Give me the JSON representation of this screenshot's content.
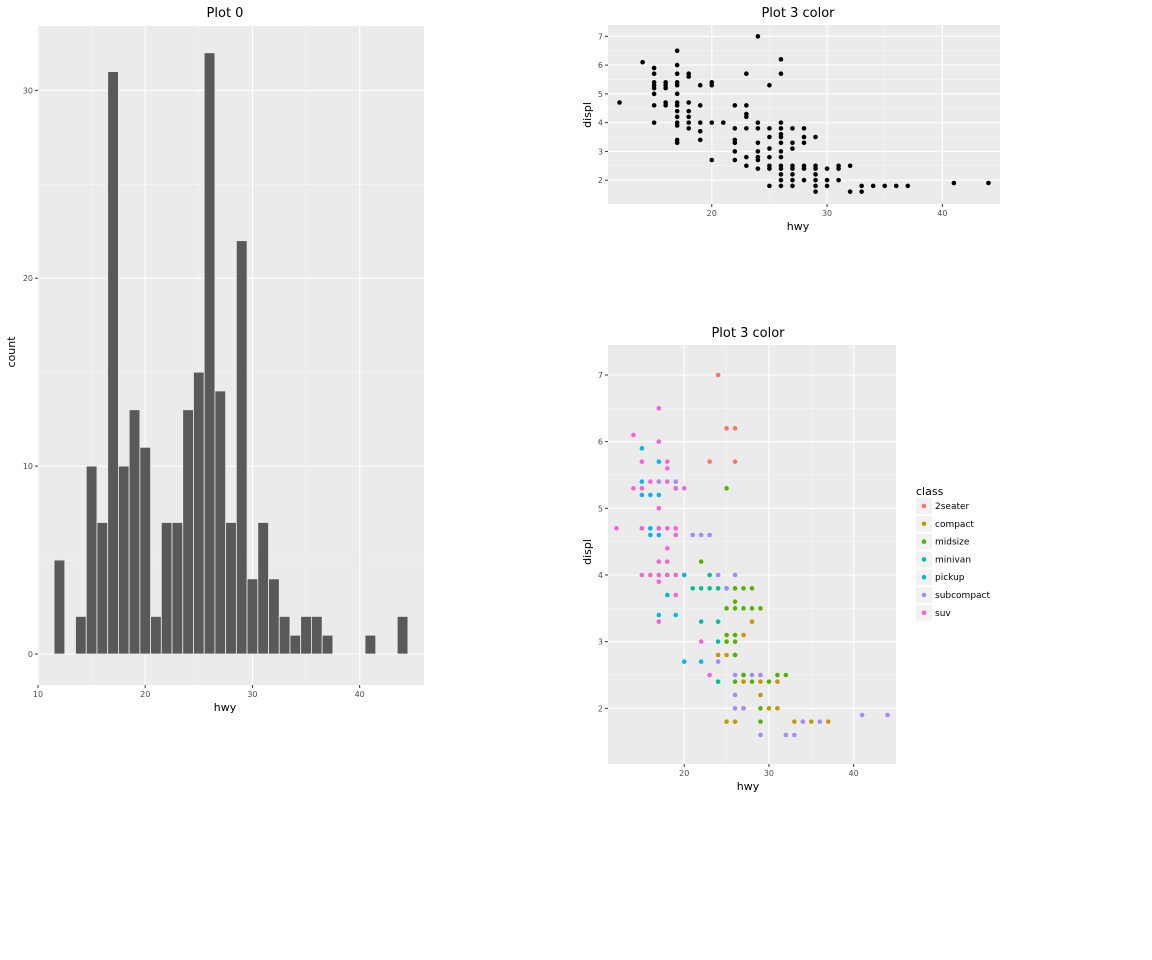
{
  "chart_data": [
    {
      "type": "bar",
      "title": "Plot 0",
      "xlabel": "hwy",
      "ylabel": "count",
      "xlim": [
        10,
        46
      ],
      "ylim": [
        0,
        33
      ],
      "x_ticks": [
        10,
        20,
        30,
        40
      ],
      "y_ticks": [
        0,
        10,
        20,
        30
      ],
      "bar_width": 1,
      "fill": "#595959",
      "x": [
        12,
        14,
        15,
        16,
        17,
        18,
        19,
        20,
        21,
        22,
        23,
        24,
        25,
        26,
        27,
        28,
        29,
        30,
        31,
        32,
        33,
        34,
        35,
        36,
        37,
        41,
        44
      ],
      "values": [
        5,
        2,
        10,
        7,
        31,
        10,
        13,
        11,
        2,
        7,
        7,
        13,
        15,
        32,
        14,
        7,
        22,
        4,
        7,
        4,
        2,
        1,
        2,
        2,
        1,
        1,
        2
      ]
    },
    {
      "type": "scatter",
      "title": "Plot 3 color",
      "xlabel": "hwy",
      "ylabel": "displ",
      "xlim": [
        11,
        45
      ],
      "ylim": [
        1.45,
        7.15
      ],
      "x_ticks": [
        20,
        30,
        40
      ],
      "y_ticks": [
        2,
        3,
        4,
        5,
        6,
        7
      ],
      "point_color": "#000000",
      "points": [
        [
          12,
          4.7
        ],
        [
          14,
          6.1
        ],
        [
          15,
          5.4
        ],
        [
          15,
          5.2
        ],
        [
          15,
          5.0
        ],
        [
          15,
          4.6
        ],
        [
          15,
          4.0
        ],
        [
          15,
          5.9
        ],
        [
          15,
          5.7
        ],
        [
          15,
          5.3
        ],
        [
          16,
          4.7
        ],
        [
          16,
          4.6
        ],
        [
          16,
          5.2
        ],
        [
          16,
          5.3
        ],
        [
          16,
          5.4
        ],
        [
          17,
          4.7
        ],
        [
          17,
          5.4
        ],
        [
          17,
          5.3
        ],
        [
          17,
          5.7
        ],
        [
          17,
          6.5
        ],
        [
          17,
          4.6
        ],
        [
          17,
          4.0
        ],
        [
          17,
          4.2
        ],
        [
          17,
          3.3
        ],
        [
          17,
          3.4
        ],
        [
          17,
          3.9
        ],
        [
          17,
          5.0
        ],
        [
          17,
          6.0
        ],
        [
          17,
          4.4
        ],
        [
          18,
          4.2
        ],
        [
          18,
          5.7
        ],
        [
          18,
          5.6
        ],
        [
          18,
          4.0
        ],
        [
          18,
          4.4
        ],
        [
          18,
          3.8
        ],
        [
          18,
          4.7
        ],
        [
          19,
          3.7
        ],
        [
          19,
          4.0
        ],
        [
          19,
          3.4
        ],
        [
          19,
          5.3
        ],
        [
          19,
          4.6
        ],
        [
          20,
          5.4
        ],
        [
          20,
          5.3
        ],
        [
          20,
          2.7
        ],
        [
          20,
          4.0
        ],
        [
          21,
          4.0
        ],
        [
          22,
          4.6
        ],
        [
          22,
          3.8
        ],
        [
          22,
          3.4
        ],
        [
          23,
          4.6
        ],
        [
          23,
          3.8
        ],
        [
          22,
          3.3
        ],
        [
          22,
          3.0
        ],
        [
          22,
          2.7
        ],
        [
          23,
          2.5
        ],
        [
          23,
          2.8
        ],
        [
          23,
          4.3
        ],
        [
          23,
          4.2
        ],
        [
          23,
          5.7
        ],
        [
          24,
          7.0
        ],
        [
          24,
          4.0
        ],
        [
          24,
          2.8
        ],
        [
          24,
          3.8
        ],
        [
          24,
          3.3
        ],
        [
          24,
          3.0
        ],
        [
          24,
          2.4
        ],
        [
          24,
          2.7
        ],
        [
          25,
          3.8
        ],
        [
          25,
          2.8
        ],
        [
          25,
          3.1
        ],
        [
          25,
          2.5
        ],
        [
          25,
          2.4
        ],
        [
          25,
          1.8
        ],
        [
          25,
          5.3
        ],
        [
          25,
          3.5
        ],
        [
          26,
          2.2
        ],
        [
          26,
          2.0
        ],
        [
          26,
          1.8
        ],
        [
          26,
          2.5
        ],
        [
          26,
          2.4
        ],
        [
          26,
          2.8
        ],
        [
          26,
          3.0
        ],
        [
          26,
          3.3
        ],
        [
          26,
          3.5
        ],
        [
          26,
          3.6
        ],
        [
          26,
          3.8
        ],
        [
          26,
          6.2
        ],
        [
          26,
          5.7
        ],
        [
          26,
          4.0
        ],
        [
          27,
          2.0
        ],
        [
          27,
          2.4
        ],
        [
          27,
          2.5
        ],
        [
          27,
          3.1
        ],
        [
          27,
          3.3
        ],
        [
          27,
          3.8
        ],
        [
          27,
          2.2
        ],
        [
          27,
          1.8
        ],
        [
          28,
          2.0
        ],
        [
          28,
          2.5
        ],
        [
          28,
          2.4
        ],
        [
          28,
          3.3
        ],
        [
          28,
          3.5
        ],
        [
          28,
          3.8
        ],
        [
          29,
          2.0
        ],
        [
          29,
          1.8
        ],
        [
          29,
          2.5
        ],
        [
          29,
          2.4
        ],
        [
          29,
          2.2
        ],
        [
          29,
          1.6
        ],
        [
          29,
          3.5
        ],
        [
          30,
          2.0
        ],
        [
          30,
          2.4
        ],
        [
          30,
          1.8
        ],
        [
          31,
          2.4
        ],
        [
          31,
          2.5
        ],
        [
          31,
          2.0
        ],
        [
          32,
          1.6
        ],
        [
          32,
          2.5
        ],
        [
          33,
          1.8
        ],
        [
          33,
          1.6
        ],
        [
          34,
          1.8
        ],
        [
          35,
          1.8
        ],
        [
          36,
          1.8
        ],
        [
          37,
          1.8
        ],
        [
          41,
          1.9
        ],
        [
          44,
          1.9
        ]
      ]
    },
    {
      "type": "scatter",
      "title": "Plot 3 color",
      "xlabel": "hwy",
      "ylabel": "displ",
      "xlim": [
        11,
        45
      ],
      "ylim": [
        1.45,
        7.15
      ],
      "x_ticks": [
        20,
        30,
        40
      ],
      "y_ticks": [
        2,
        3,
        4,
        5,
        6,
        7
      ],
      "legend": {
        "title": "class",
        "position": "right",
        "entries": [
          {
            "name": "2seater",
            "color": "#F8766D"
          },
          {
            "name": "compact",
            "color": "#C49A00"
          },
          {
            "name": "midsize",
            "color": "#53B400"
          },
          {
            "name": "minivan",
            "color": "#00C094"
          },
          {
            "name": "pickup",
            "color": "#00B6EB"
          },
          {
            "name": "subcompact",
            "color": "#A58AFF"
          },
          {
            "name": "suv",
            "color": "#FB61D7"
          }
        ]
      },
      "points": [
        {
          "x": 23,
          "y": 5.7,
          "c": "2seater"
        },
        {
          "x": 24,
          "y": 7.0,
          "c": "2seater"
        },
        {
          "x": 25,
          "y": 6.2,
          "c": "2seater"
        },
        {
          "x": 26,
          "y": 6.2,
          "c": "2seater"
        },
        {
          "x": 26,
          "y": 5.7,
          "c": "2seater"
        },
        {
          "x": 25,
          "y": 1.8,
          "c": "compact"
        },
        {
          "x": 26,
          "y": 1.8,
          "c": "compact"
        },
        {
          "x": 24,
          "y": 2.8,
          "c": "compact"
        },
        {
          "x": 25,
          "y": 2.8,
          "c": "compact"
        },
        {
          "x": 27,
          "y": 3.1,
          "c": "compact"
        },
        {
          "x": 27,
          "y": 2.5,
          "c": "compact"
        },
        {
          "x": 28,
          "y": 3.3,
          "c": "compact"
        },
        {
          "x": 29,
          "y": 2.4,
          "c": "compact"
        },
        {
          "x": 29,
          "y": 2.2,
          "c": "compact"
        },
        {
          "x": 30,
          "y": 2.0,
          "c": "compact"
        },
        {
          "x": 31,
          "y": 2.0,
          "c": "compact"
        },
        {
          "x": 31,
          "y": 2.4,
          "c": "compact"
        },
        {
          "x": 33,
          "y": 1.8,
          "c": "compact"
        },
        {
          "x": 35,
          "y": 1.8,
          "c": "compact"
        },
        {
          "x": 37,
          "y": 1.8,
          "c": "compact"
        },
        {
          "x": 27,
          "y": 2.0,
          "c": "compact"
        },
        {
          "x": 27,
          "y": 2.4,
          "c": "compact"
        },
        {
          "x": 26,
          "y": 2.8,
          "c": "compact"
        },
        {
          "x": 25,
          "y": 5.3,
          "c": "midsize"
        },
        {
          "x": 26,
          "y": 3.8,
          "c": "midsize"
        },
        {
          "x": 26,
          "y": 3.6,
          "c": "midsize"
        },
        {
          "x": 26,
          "y": 3.1,
          "c": "midsize"
        },
        {
          "x": 25,
          "y": 3.1,
          "c": "midsize"
        },
        {
          "x": 26,
          "y": 3.5,
          "c": "midsize"
        },
        {
          "x": 27,
          "y": 3.8,
          "c": "midsize"
        },
        {
          "x": 27,
          "y": 3.5,
          "c": "midsize"
        },
        {
          "x": 28,
          "y": 3.8,
          "c": "midsize"
        },
        {
          "x": 28,
          "y": 3.5,
          "c": "midsize"
        },
        {
          "x": 29,
          "y": 3.5,
          "c": "midsize"
        },
        {
          "x": 25,
          "y": 3.5,
          "c": "midsize"
        },
        {
          "x": 26,
          "y": 2.4,
          "c": "midsize"
        },
        {
          "x": 27,
          "y": 2.5,
          "c": "midsize"
        },
        {
          "x": 28,
          "y": 2.4,
          "c": "midsize"
        },
        {
          "x": 29,
          "y": 2.0,
          "c": "midsize"
        },
        {
          "x": 29,
          "y": 1.8,
          "c": "midsize"
        },
        {
          "x": 30,
          "y": 2.4,
          "c": "midsize"
        },
        {
          "x": 31,
          "y": 2.5,
          "c": "midsize"
        },
        {
          "x": 32,
          "y": 2.5,
          "c": "midsize"
        },
        {
          "x": 25,
          "y": 3.0,
          "c": "midsize"
        },
        {
          "x": 26,
          "y": 3.0,
          "c": "midsize"
        },
        {
          "x": 26,
          "y": 2.8,
          "c": "midsize"
        },
        {
          "x": 22,
          "y": 4.2,
          "c": "midsize"
        },
        {
          "x": 22,
          "y": 3.8,
          "c": "minivan"
        },
        {
          "x": 21,
          "y": 3.8,
          "c": "minivan"
        },
        {
          "x": 23,
          "y": 4.0,
          "c": "minivan"
        },
        {
          "x": 24,
          "y": 3.8,
          "c": "minivan"
        },
        {
          "x": 24,
          "y": 3.3,
          "c": "minivan"
        },
        {
          "x": 22,
          "y": 3.3,
          "c": "minivan"
        },
        {
          "x": 24,
          "y": 3.0,
          "c": "minivan"
        },
        {
          "x": 24,
          "y": 2.4,
          "c": "minivan"
        },
        {
          "x": 23,
          "y": 3.8,
          "c": "minivan"
        },
        {
          "x": 25,
          "y": 3.8,
          "c": "minivan"
        },
        {
          "x": 15,
          "y": 5.9,
          "c": "pickup"
        },
        {
          "x": 15,
          "y": 5.2,
          "c": "pickup"
        },
        {
          "x": 16,
          "y": 5.2,
          "c": "pickup"
        },
        {
          "x": 17,
          "y": 5.2,
          "c": "pickup"
        },
        {
          "x": 17,
          "y": 5.7,
          "c": "pickup"
        },
        {
          "x": 16,
          "y": 4.7,
          "c": "pickup"
        },
        {
          "x": 17,
          "y": 4.7,
          "c": "pickup"
        },
        {
          "x": 16,
          "y": 4.6,
          "c": "pickup"
        },
        {
          "x": 17,
          "y": 4.6,
          "c": "pickup"
        },
        {
          "x": 18,
          "y": 4.0,
          "c": "pickup"
        },
        {
          "x": 18,
          "y": 3.7,
          "c": "pickup"
        },
        {
          "x": 17,
          "y": 3.4,
          "c": "pickup"
        },
        {
          "x": 19,
          "y": 3.4,
          "c": "pickup"
        },
        {
          "x": 20,
          "y": 4.0,
          "c": "pickup"
        },
        {
          "x": 20,
          "y": 2.7,
          "c": "pickup"
        },
        {
          "x": 22,
          "y": 2.7,
          "c": "pickup"
        },
        {
          "x": 15,
          "y": 4.7,
          "c": "pickup"
        },
        {
          "x": 15,
          "y": 5.4,
          "c": "pickup"
        },
        {
          "x": 19,
          "y": 5.3,
          "c": "pickup"
        },
        {
          "x": 21,
          "y": 4.6,
          "c": "subcompact"
        },
        {
          "x": 22,
          "y": 4.6,
          "c": "subcompact"
        },
        {
          "x": 23,
          "y": 4.6,
          "c": "subcompact"
        },
        {
          "x": 24,
          "y": 4.0,
          "c": "subcompact"
        },
        {
          "x": 26,
          "y": 4.0,
          "c": "subcompact"
        },
        {
          "x": 25,
          "y": 3.8,
          "c": "subcompact"
        },
        {
          "x": 24,
          "y": 2.7,
          "c": "subcompact"
        },
        {
          "x": 26,
          "y": 2.5,
          "c": "subcompact"
        },
        {
          "x": 28,
          "y": 2.5,
          "c": "subcompact"
        },
        {
          "x": 29,
          "y": 2.5,
          "c": "subcompact"
        },
        {
          "x": 26,
          "y": 2.0,
          "c": "subcompact"
        },
        {
          "x": 27,
          "y": 2.0,
          "c": "subcompact"
        },
        {
          "x": 26,
          "y": 2.2,
          "c": "subcompact"
        },
        {
          "x": 29,
          "y": 1.6,
          "c": "subcompact"
        },
        {
          "x": 32,
          "y": 1.6,
          "c": "subcompact"
        },
        {
          "x": 33,
          "y": 1.6,
          "c": "subcompact"
        },
        {
          "x": 34,
          "y": 1.8,
          "c": "subcompact"
        },
        {
          "x": 36,
          "y": 1.8,
          "c": "subcompact"
        },
        {
          "x": 41,
          "y": 1.9,
          "c": "subcompact"
        },
        {
          "x": 44,
          "y": 1.9,
          "c": "subcompact"
        },
        {
          "x": 19,
          "y": 5.4,
          "c": "subcompact"
        },
        {
          "x": 17,
          "y": 5.4,
          "c": "subcompact"
        },
        {
          "x": 12,
          "y": 4.7,
          "c": "suv"
        },
        {
          "x": 14,
          "y": 6.1,
          "c": "suv"
        },
        {
          "x": 14,
          "y": 5.3,
          "c": "suv"
        },
        {
          "x": 15,
          "y": 5.3,
          "c": "suv"
        },
        {
          "x": 15,
          "y": 5.7,
          "c": "suv"
        },
        {
          "x": 15,
          "y": 4.7,
          "c": "suv"
        },
        {
          "x": 15,
          "y": 4.0,
          "c": "suv"
        },
        {
          "x": 16,
          "y": 5.4,
          "c": "suv"
        },
        {
          "x": 16,
          "y": 4.0,
          "c": "suv"
        },
        {
          "x": 17,
          "y": 6.5,
          "c": "suv"
        },
        {
          "x": 17,
          "y": 6.0,
          "c": "suv"
        },
        {
          "x": 17,
          "y": 5.0,
          "c": "suv"
        },
        {
          "x": 17,
          "y": 4.7,
          "c": "suv"
        },
        {
          "x": 17,
          "y": 4.2,
          "c": "suv"
        },
        {
          "x": 17,
          "y": 4.0,
          "c": "suv"
        },
        {
          "x": 17,
          "y": 3.9,
          "c": "suv"
        },
        {
          "x": 17,
          "y": 3.3,
          "c": "suv"
        },
        {
          "x": 18,
          "y": 5.7,
          "c": "suv"
        },
        {
          "x": 18,
          "y": 5.6,
          "c": "suv"
        },
        {
          "x": 18,
          "y": 5.4,
          "c": "suv"
        },
        {
          "x": 18,
          "y": 4.4,
          "c": "suv"
        },
        {
          "x": 18,
          "y": 4.2,
          "c": "suv"
        },
        {
          "x": 18,
          "y": 4.0,
          "c": "suv"
        },
        {
          "x": 19,
          "y": 4.7,
          "c": "suv"
        },
        {
          "x": 19,
          "y": 4.6,
          "c": "suv"
        },
        {
          "x": 19,
          "y": 4.0,
          "c": "suv"
        },
        {
          "x": 19,
          "y": 3.7,
          "c": "suv"
        },
        {
          "x": 20,
          "y": 5.3,
          "c": "suv"
        },
        {
          "x": 22,
          "y": 3.0,
          "c": "suv"
        },
        {
          "x": 23,
          "y": 2.5,
          "c": "suv"
        },
        {
          "x": 18,
          "y": 4.7,
          "c": "suv"
        },
        {
          "x": 19,
          "y": 5.3,
          "c": "suv"
        }
      ]
    }
  ]
}
